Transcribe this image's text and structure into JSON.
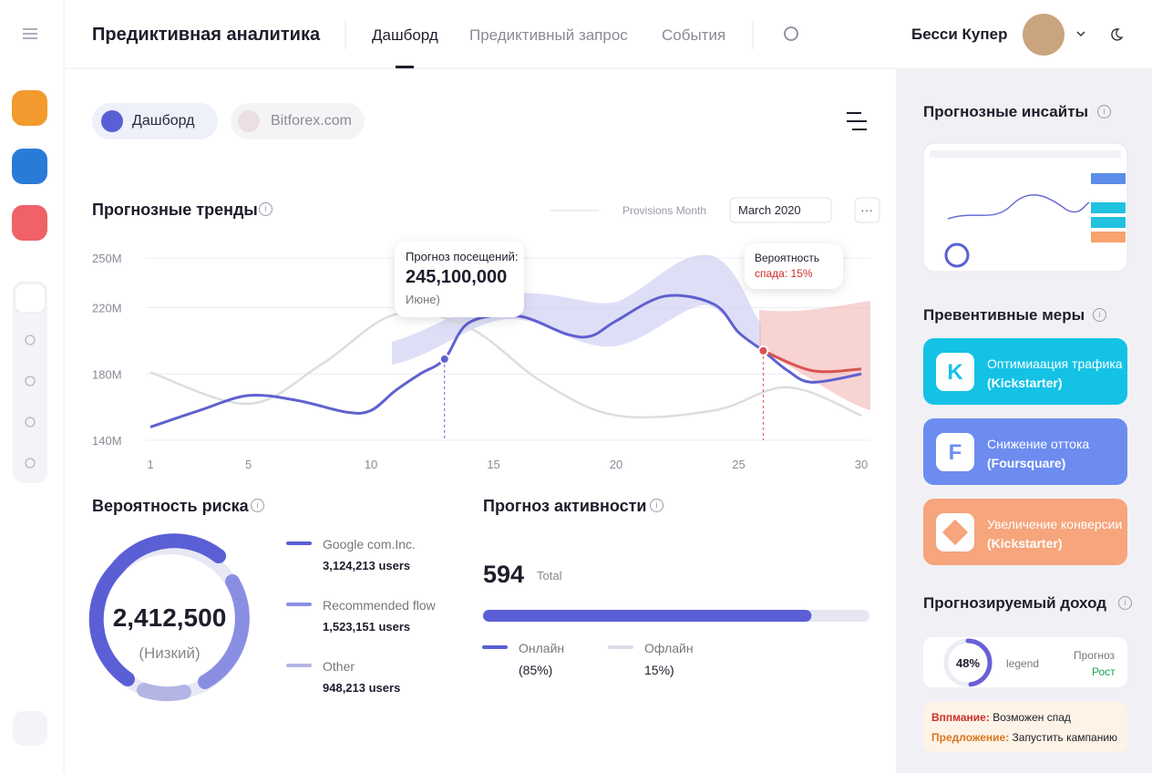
{
  "header": {
    "title": "Предиктивная аналитика",
    "nav": [
      "Дашборд",
      "Предиктивный запрос",
      "События"
    ],
    "user": "Бесси Купер"
  },
  "tabs": [
    "Дашборд",
    "Bitforex.com"
  ],
  "trends": {
    "title": "Прогнозные тренды",
    "filter_label": "Provisions Month",
    "date": "March 2020",
    "chart": {
      "type": "line",
      "xlim": [
        1,
        30
      ],
      "xticks": [
        1,
        5,
        10,
        15,
        20,
        25,
        30
      ],
      "ylim": [
        140000000,
        250000000
      ],
      "yticks": [
        {
          "value": 250000000,
          "label": "250M"
        },
        {
          "value": 220000000,
          "label": "220M"
        },
        {
          "value": 180000000,
          "label": "180M"
        },
        {
          "value": 140000000,
          "label": "140M"
        }
      ],
      "series": [
        {
          "color": "#6060d0",
          "x": [
            1,
            3,
            5,
            7,
            9,
            10,
            11,
            12,
            13,
            14,
            16,
            18,
            19,
            20,
            22,
            24,
            25,
            26,
            27,
            28,
            30
          ],
          "values": [
            148000000,
            158000000,
            167000000,
            164000000,
            157000000,
            158000000,
            170000000,
            180000000,
            189000000,
            211000000,
            215000000,
            204000000,
            203000000,
            212000000,
            227000000,
            222000000,
            205000000,
            194000000,
            182000000,
            175000000,
            180000000
          ]
        },
        {
          "color": "#dcdce3",
          "x": [
            1,
            5,
            8,
            11,
            14,
            17,
            20,
            24,
            27,
            30
          ],
          "values": [
            181000000,
            162000000,
            186000000,
            216000000,
            208000000,
            175000000,
            155000000,
            158000000,
            172000000,
            155000000
          ]
        },
        {
          "color": "#d9534f",
          "x": [
            26,
            28,
            30
          ],
          "values": [
            194000000,
            182000000,
            183000000
          ]
        }
      ]
    },
    "tooltips": [
      {
        "title": "Прогноз посещений:",
        "value": "245,100,000",
        "note": "Июне)"
      },
      {
        "title": "Вероятность",
        "note": "спада: 15%"
      }
    ]
  },
  "risk": {
    "title": "Вероятность риска",
    "total": "2,412,500",
    "level": "(Низкий)",
    "legend": [
      {
        "name": "Google com.Inc.",
        "users": "3,124,213 users"
      },
      {
        "name": "Recommended flow",
        "users": "1,523,151 users"
      },
      {
        "name": "Other",
        "users": "948,213 users"
      }
    ]
  },
  "activity": {
    "title": "Прогноз активности",
    "total": "594",
    "total_label": "Total",
    "online": {
      "name": "Онлайн",
      "share": {
        "value": 85,
        "label": "(85%)"
      }
    },
    "offline": {
      "name": "Офлайн",
      "share": {
        "value": 15,
        "label": "15%)"
      }
    }
  },
  "insights": {
    "title": "Прогнозные инсайты"
  },
  "measures": {
    "title": "Превентивные меры",
    "items": [
      {
        "line1": "Оптимиаация трафика",
        "line2": "(Kickstarter)"
      },
      {
        "line1": "Снижение оттока",
        "line2": "(Foursquare)"
      },
      {
        "line1": "Увеличение конверсии",
        "line2": "(Kickstarter)"
      }
    ]
  },
  "income": {
    "title": "Прогнозируемый доход",
    "ring": {
      "value": 48,
      "label": "48%"
    },
    "legend": "legend",
    "forecast": "Прогноз",
    "growth": "Рост",
    "warning_label": "Вппмание:",
    "warning": "Возможен спад",
    "suggestion_label": "Предложение:",
    "suggestion": "Запустить кампанию"
  }
}
